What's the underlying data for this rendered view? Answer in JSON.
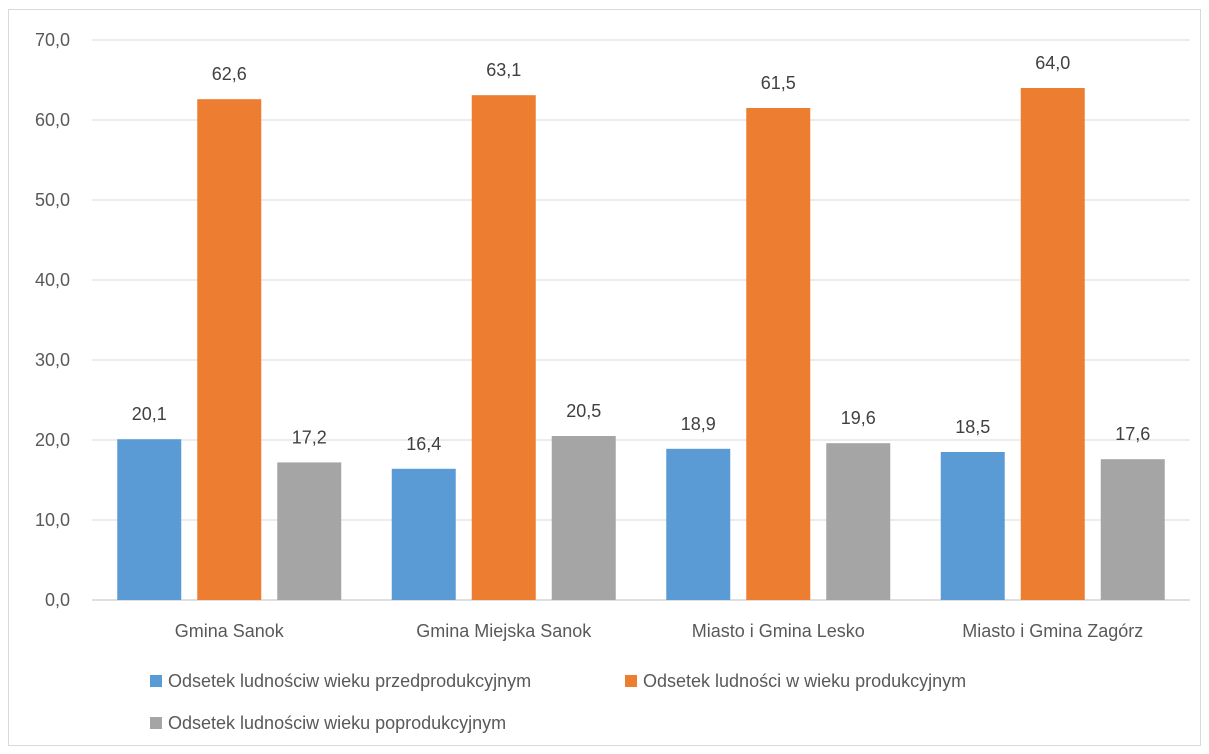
{
  "chart_data": {
    "type": "bar",
    "categories": [
      "Gmina Sanok",
      "Gmina Miejska Sanok",
      "Miasto i Gmina Lesko",
      "Miasto i Gmina Zagórz"
    ],
    "series": [
      {
        "name": "Odsetek ludnościw wieku przedprodukcyjnym",
        "color": "#5b9bd5",
        "values": [
          20.1,
          16.4,
          18.9,
          18.5
        ]
      },
      {
        "name": "Odsetek ludności w wieku produkcyjnym",
        "color": "#ed7d31",
        "values": [
          62.6,
          63.1,
          61.5,
          64.0
        ]
      },
      {
        "name": "Odsetek ludnościw wieku poprodukcyjnym",
        "color": "#a5a5a5",
        "values": [
          17.2,
          20.5,
          19.6,
          17.6
        ]
      }
    ],
    "ylim": [
      0,
      70
    ],
    "yticks": [
      "0,0",
      "10,0",
      "20,0",
      "30,0",
      "40,0",
      "50,0",
      "60,0",
      "70,0"
    ],
    "grid": true,
    "legend_position": "bottom",
    "data_labels": true,
    "decimal_separator": ","
  }
}
